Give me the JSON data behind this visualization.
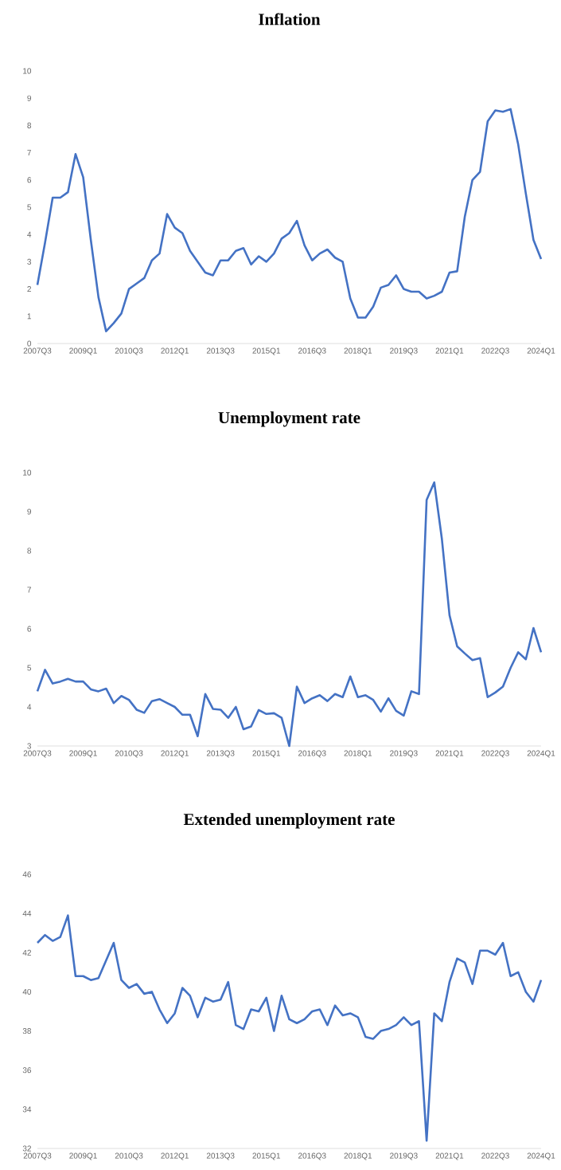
{
  "chart_data": [
    {
      "type": "line",
      "title": "Inflation",
      "color": "#4472c4",
      "ylim": [
        0,
        10
      ],
      "yticks": [
        0,
        1,
        2,
        3,
        4,
        5,
        6,
        7,
        8,
        9,
        10
      ],
      "categories": [
        "2007Q3",
        null,
        null,
        null,
        null,
        null,
        "2009Q1",
        null,
        null,
        null,
        null,
        null,
        "2010Q3",
        null,
        null,
        null,
        null,
        null,
        "2012Q1",
        null,
        null,
        null,
        null,
        null,
        "2013Q3",
        null,
        null,
        null,
        null,
        null,
        "2015Q1",
        null,
        null,
        null,
        null,
        null,
        "2016Q3",
        null,
        null,
        null,
        null,
        null,
        "2018Q1",
        null,
        null,
        null,
        null,
        null,
        "2019Q3",
        null,
        null,
        null,
        null,
        null,
        "2021Q1",
        null,
        null,
        null,
        null,
        null,
        "2022Q3",
        null,
        null,
        null,
        null,
        null,
        "2024Q1"
      ],
      "values": [
        2.15,
        3.7,
        5.35,
        5.35,
        5.55,
        6.95,
        6.1,
        3.8,
        1.7,
        0.45,
        0.75,
        1.1,
        2.0,
        2.2,
        2.4,
        3.05,
        3.3,
        4.75,
        4.25,
        4.05,
        3.4,
        3.0,
        2.6,
        2.5,
        3.05,
        3.05,
        3.4,
        3.5,
        2.9,
        3.2,
        3.0,
        3.3,
        3.85,
        4.05,
        4.5,
        3.6,
        3.05,
        3.3,
        3.45,
        3.15,
        3.0,
        1.65,
        0.95,
        0.95,
        1.35,
        2.05,
        2.15,
        2.5,
        2.0,
        1.9,
        1.9,
        1.65,
        1.75,
        1.9,
        2.6,
        2.65,
        4.65,
        6.0,
        6.3,
        8.15,
        8.55,
        8.5,
        8.6,
        7.3,
        5.5,
        3.8,
        3.1
      ]
    },
    {
      "type": "line",
      "title": "Unemployment rate",
      "color": "#4472c4",
      "ylim": [
        3,
        10
      ],
      "yticks": [
        3,
        4,
        5,
        6,
        7,
        8,
        9,
        10
      ],
      "categories": [
        "2007Q3",
        null,
        null,
        null,
        null,
        null,
        "2009Q1",
        null,
        null,
        null,
        null,
        null,
        "2010Q3",
        null,
        null,
        null,
        null,
        null,
        "2012Q1",
        null,
        null,
        null,
        null,
        null,
        "2013Q3",
        null,
        null,
        null,
        null,
        null,
        "2015Q1",
        null,
        null,
        null,
        null,
        null,
        "2016Q3",
        null,
        null,
        null,
        null,
        null,
        "2018Q1",
        null,
        null,
        null,
        null,
        null,
        "2019Q3",
        null,
        null,
        null,
        null,
        null,
        "2021Q1",
        null,
        null,
        null,
        null,
        null,
        "2022Q3",
        null,
        null,
        null,
        null,
        null,
        "2024Q1"
      ],
      "values": [
        4.4,
        4.95,
        4.6,
        4.65,
        4.72,
        4.65,
        4.65,
        4.45,
        4.4,
        4.47,
        4.1,
        4.28,
        4.18,
        3.93,
        3.85,
        4.15,
        4.2,
        4.1,
        4.0,
        3.8,
        3.8,
        3.25,
        4.33,
        3.95,
        3.93,
        3.72,
        4.0,
        3.43,
        3.5,
        3.92,
        3.82,
        3.84,
        3.72,
        3.0,
        4.52,
        4.1,
        4.22,
        4.3,
        4.15,
        4.33,
        4.25,
        4.78,
        4.25,
        4.3,
        4.18,
        3.88,
        4.22,
        3.9,
        3.78,
        4.4,
        4.33,
        9.3,
        9.75,
        8.3,
        6.35,
        5.55,
        5.37,
        5.2,
        5.25,
        4.25,
        4.37,
        4.52,
        5.0,
        5.4,
        5.22,
        6.02,
        5.4
      ]
    },
    {
      "type": "line",
      "title": "Extended unemployment rate",
      "color": "#4472c4",
      "ylim": [
        32,
        46
      ],
      "yticks": [
        32,
        34,
        36,
        38,
        40,
        42,
        44,
        46
      ],
      "categories": [
        "2007Q3",
        null,
        null,
        null,
        null,
        null,
        "2009Q1",
        null,
        null,
        null,
        null,
        null,
        "2010Q3",
        null,
        null,
        null,
        null,
        null,
        "2012Q1",
        null,
        null,
        null,
        null,
        null,
        "2013Q3",
        null,
        null,
        null,
        null,
        null,
        "2015Q1",
        null,
        null,
        null,
        null,
        null,
        "2016Q3",
        null,
        null,
        null,
        null,
        null,
        "2018Q1",
        null,
        null,
        null,
        null,
        null,
        "2019Q3",
        null,
        null,
        null,
        null,
        null,
        "2021Q1",
        null,
        null,
        null,
        null,
        null,
        "2022Q3",
        null,
        null,
        null,
        null,
        null,
        "2024Q1"
      ],
      "values": [
        42.5,
        42.9,
        42.6,
        42.8,
        43.9,
        40.8,
        40.8,
        40.6,
        40.7,
        41.6,
        42.5,
        40.6,
        40.2,
        40.4,
        39.9,
        40.0,
        39.1,
        38.4,
        38.9,
        40.2,
        39.8,
        38.7,
        39.7,
        39.5,
        39.6,
        40.5,
        38.3,
        38.1,
        39.1,
        39.0,
        39.7,
        38.0,
        39.8,
        38.6,
        38.4,
        38.6,
        39.0,
        39.1,
        38.3,
        39.3,
        38.8,
        38.9,
        38.7,
        37.7,
        37.6,
        38.0,
        38.1,
        38.3,
        38.7,
        38.3,
        38.5,
        32.4,
        38.9,
        38.5,
        40.5,
        41.7,
        41.5,
        40.4,
        42.1,
        42.1,
        41.9,
        42.5,
        40.8,
        41.0,
        40.0,
        39.5,
        40.6
      ]
    }
  ]
}
